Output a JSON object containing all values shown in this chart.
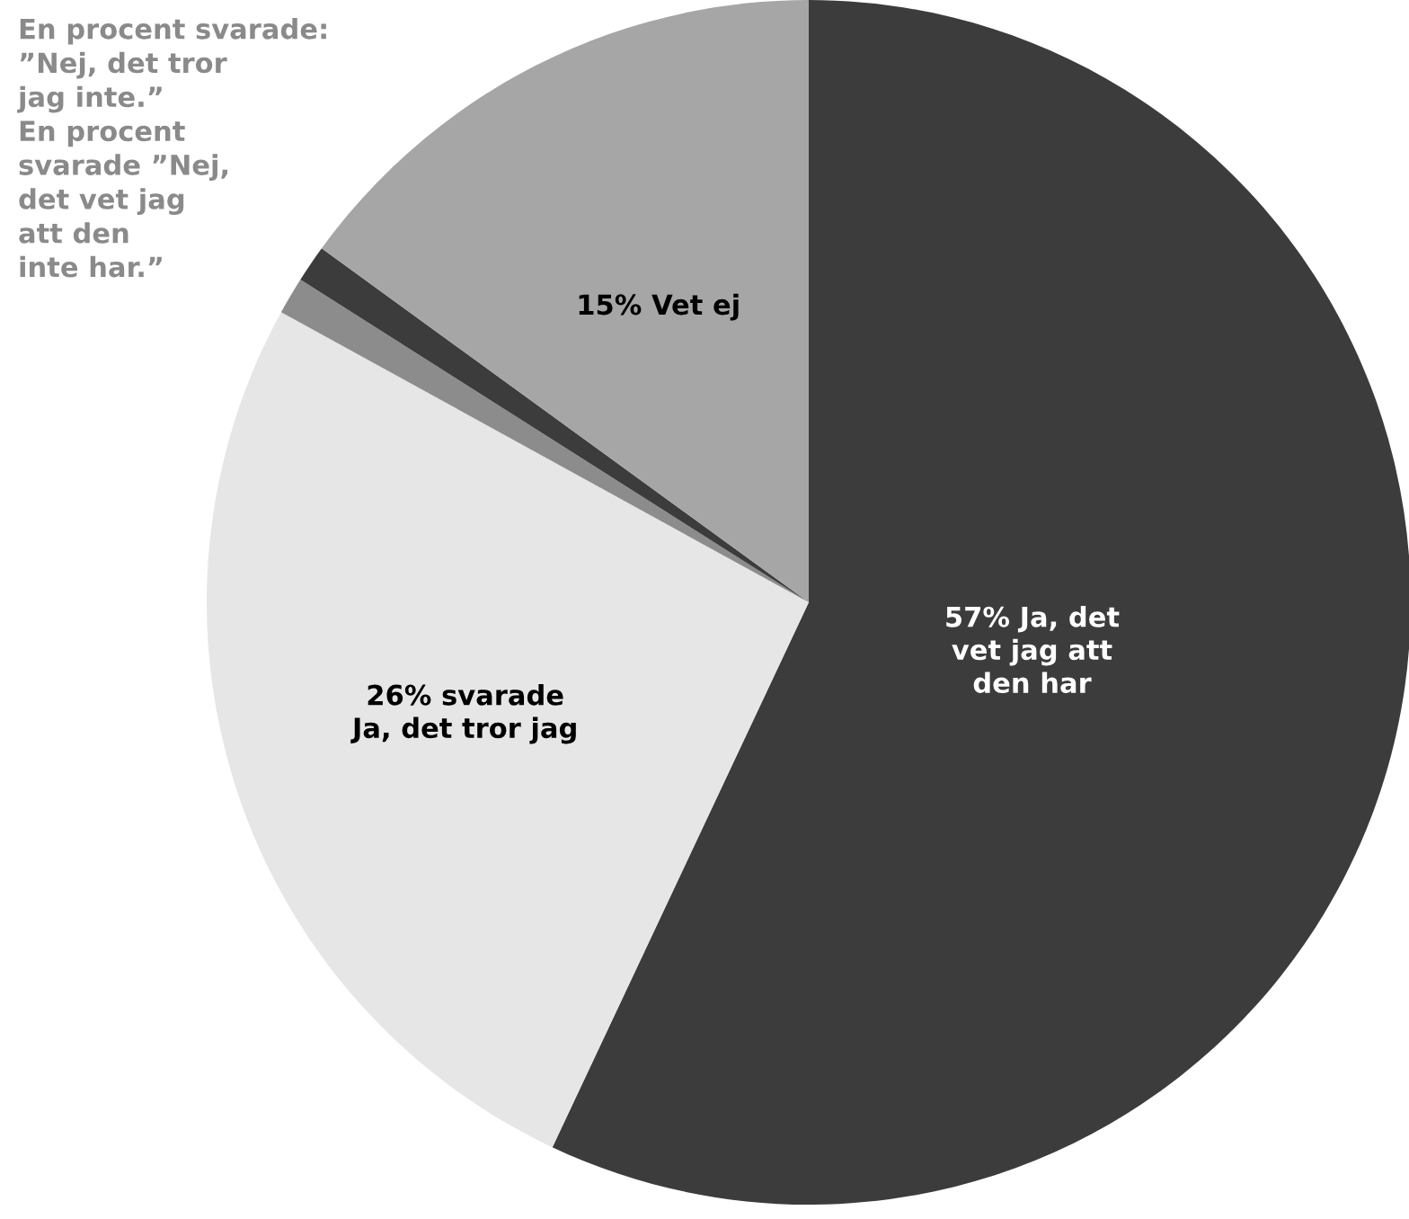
{
  "chart_data": {
    "type": "pie",
    "categories": [
      "57% Ja, det\nvet jag att\nden har",
      "26% svarade\nJa, det tror jag",
      null,
      null,
      "15% Vet ej"
    ],
    "values": [
      57,
      26,
      1,
      1,
      15
    ],
    "colors": [
      "#3c3c3c",
      "#e6e6e6",
      "#8c8c8c",
      "#3c3c3c",
      "#a6a6a6"
    ],
    "annotations": [
      "En procent svarade:\n”Nej, det tror\njag inte.”\nEn procent\nsvarade ”Nej,\ndet vet jag\natt den\ninte har.”"
    ],
    "legend": false
  }
}
